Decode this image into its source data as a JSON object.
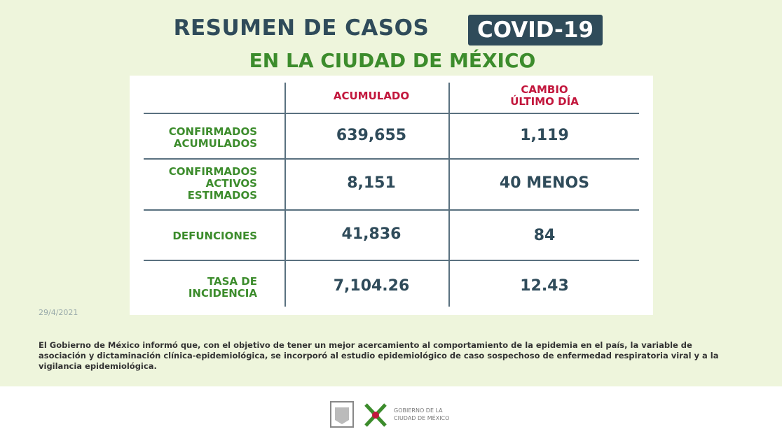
{
  "header": {
    "title": "RESUMEN DE CASOS",
    "badge": "COVID-19",
    "subtitle": "EN LA CIUDAD DE MÉXICO"
  },
  "table": {
    "columns": [
      [
        "ACUMULADO"
      ],
      [
        "CAMBIO",
        "ÚLTIMO DÍA"
      ]
    ],
    "rows": [
      {
        "label": [
          "CONFIRMADOS",
          "ACUMULADOS"
        ],
        "values": [
          "639,655",
          "1,119"
        ]
      },
      {
        "label": [
          "CONFIRMADOS",
          "ACTIVOS",
          "ESTIMADOS"
        ],
        "values": [
          "8,151",
          "40 MENOS"
        ]
      },
      {
        "label": [
          "DEFUNCIONES"
        ],
        "values": [
          "41,836",
          "84"
        ]
      },
      {
        "label": [
          "TASA DE",
          "INCIDENCIA"
        ],
        "values": [
          "7,104.26",
          "12.43"
        ]
      }
    ]
  },
  "date": "29/4/2021",
  "note": "El Gobierno de México informó que, con el objetivo de tener un mejor acercamiento al comportamiento de la epidemia en el país, la variable de asociación y dictaminación clínica-epidemiológica, se incorporó al estudio epidemiológico de caso sospechoso de enfermedad respiratoria viral y a la vigilancia epidemiológica.",
  "footer": {
    "logo_text": [
      "GOBIERNO DE LA",
      "CIUDAD DE MÉXICO"
    ]
  }
}
